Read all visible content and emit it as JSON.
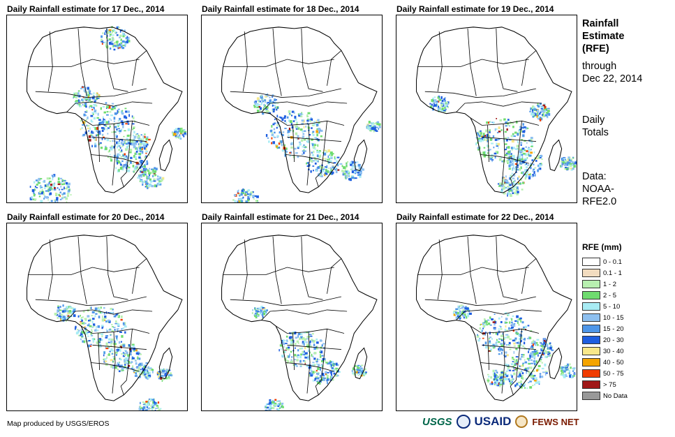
{
  "panels": [
    {
      "title": "Daily Rainfall estimate for 17 Dec., 2014"
    },
    {
      "title": "Daily Rainfall estimate for 18 Dec., 2014"
    },
    {
      "title": "Daily Rainfall estimate for 19 Dec., 2014"
    },
    {
      "title": "Daily Rainfall estimate for 20 Dec., 2014"
    },
    {
      "title": "Daily Rainfall estimate for 21 Dec., 2014"
    },
    {
      "title": "Daily Rainfall estimate for 22 Dec., 2014"
    }
  ],
  "side": {
    "title_lines": [
      "Rainfall",
      "Estimate",
      "(RFE)"
    ],
    "through_lines": [
      "through",
      "Dec 22, 2014"
    ],
    "totals_lines": [
      "Daily",
      "Totals"
    ],
    "data_lines": [
      "Data:",
      "NOAA-",
      "RFE2.0"
    ]
  },
  "legend": {
    "title": "RFE (mm)",
    "items": [
      {
        "label": "0 - 0.1",
        "color": "#ffffff"
      },
      {
        "label": "0.1 - 1",
        "color": "#f2dcc0"
      },
      {
        "label": "1 - 2",
        "color": "#b8f0b0"
      },
      {
        "label": "2 - 5",
        "color": "#6fdc6f"
      },
      {
        "label": "5 - 10",
        "color": "#a8ecf4"
      },
      {
        "label": "10 - 15",
        "color": "#8ec0f0"
      },
      {
        "label": "15 - 20",
        "color": "#4e96e8"
      },
      {
        "label": "20 - 30",
        "color": "#1e5ee0"
      },
      {
        "label": "30 - 40",
        "color": "#f8e88a"
      },
      {
        "label": "40 - 50",
        "color": "#f4a400"
      },
      {
        "label": "50 - 75",
        "color": "#f03c00"
      },
      {
        "label": "> 75",
        "color": "#a01818"
      },
      {
        "label": "No Data",
        "color": "#999999"
      }
    ]
  },
  "credit": "Map produced by USGS/EROS",
  "logos": {
    "usgs": "USGS",
    "usaid": "USAID",
    "fews": "FEWS NET"
  }
}
